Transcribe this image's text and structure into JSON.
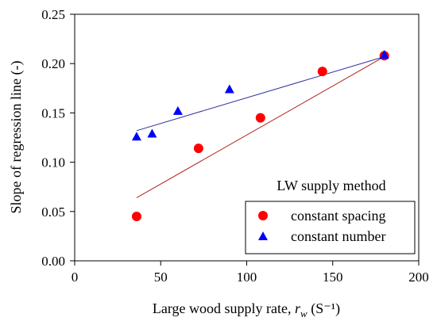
{
  "chart_data": {
    "type": "scatter",
    "xlabel": {
      "main": "Large wood supply rate, ",
      "symbol": "r",
      "subscript": "w",
      "unit": " (S⁻¹)"
    },
    "ylabel": "Slope of regression line (-)",
    "xlim": [
      0,
      200
    ],
    "ylim": [
      0,
      0.25
    ],
    "x_ticks": [
      "0",
      "50",
      "100",
      "150",
      "200"
    ],
    "y_ticks": [
      "0.00",
      "0.05",
      "0.10",
      "0.15",
      "0.20",
      "0.25"
    ],
    "grid": false,
    "legend": {
      "title": "LW supply method",
      "placement": "bottom-right"
    },
    "series": [
      {
        "name": "constant spacing",
        "marker": "circle",
        "color": "#ff0000",
        "line_color": "#b22222",
        "x": [
          36,
          72,
          108,
          144,
          180
        ],
        "y": [
          0.045,
          0.114,
          0.145,
          0.192,
          0.208
        ],
        "fit": [
          [
            36,
            0.064
          ],
          [
            180,
            0.207
          ]
        ]
      },
      {
        "name": "constant number",
        "marker": "triangle",
        "color": "#0000ff",
        "line_color": "#2f2f9f",
        "x": [
          36,
          45,
          60,
          90,
          180
        ],
        "y": [
          0.126,
          0.129,
          0.152,
          0.174,
          0.209
        ],
        "fit": [
          [
            36,
            0.132
          ],
          [
            180,
            0.207
          ]
        ]
      }
    ]
  }
}
